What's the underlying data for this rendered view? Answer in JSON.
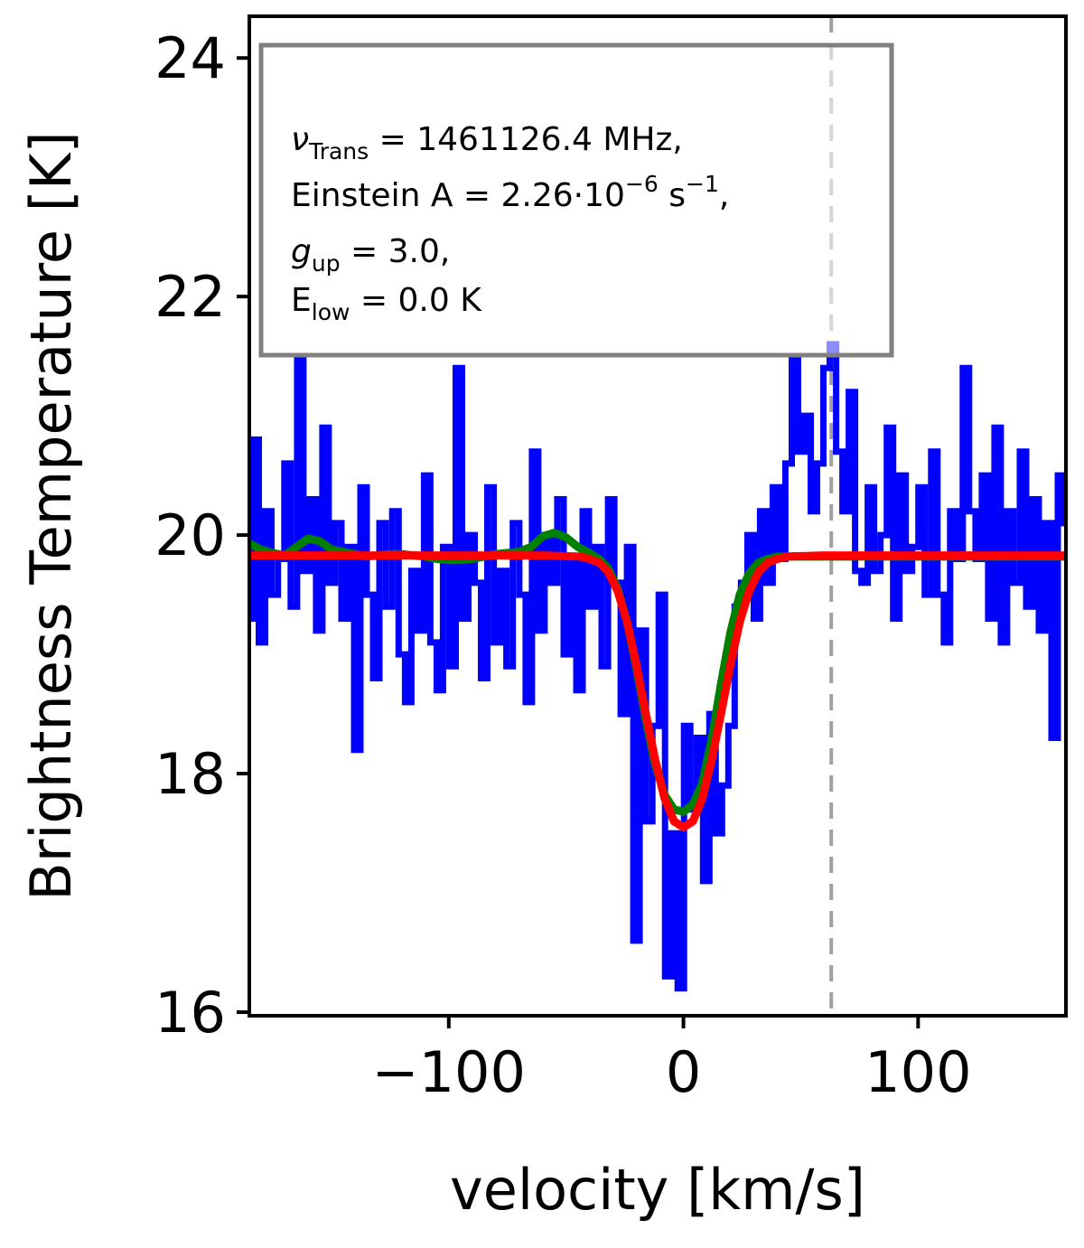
{
  "chart_data": {
    "type": "line",
    "xlabel": "velocity [km/s]",
    "ylabel": "Brightness Temperature [K]",
    "xlim": [
      -185,
      163
    ],
    "ylim": [
      15.97,
      24.35
    ],
    "xticks": [
      -100,
      0,
      100
    ],
    "xtick_labels": [
      "−100",
      "0",
      "100"
    ],
    "yticks": [
      16,
      18,
      20,
      22,
      24
    ],
    "ytick_labels": [
      "16",
      "18",
      "20",
      "22",
      "24"
    ],
    "grid": false,
    "legend": "none",
    "colors": {
      "observed": "#0000ff",
      "model": "#008000",
      "fit": "#ff0000",
      "marker_line": "#a0a0a0"
    },
    "vertical_marker_x": 63,
    "series": [
      {
        "line_style": "steps",
        "x": [
          -185.0,
          -182.3,
          -179.6,
          -176.9,
          -174.2,
          -171.4,
          -168.7,
          -166.0,
          -163.3,
          -160.6,
          -157.9,
          -155.2,
          -152.5,
          -149.8,
          -147.1,
          -144.4,
          -141.7,
          -139.0,
          -136.3,
          -133.6,
          -130.9,
          -128.2,
          -125.5,
          -122.7,
          -120.0,
          -117.3,
          -114.6,
          -111.9,
          -109.2,
          -106.5,
          -103.8,
          -101.1,
          -98.4,
          -95.7,
          -93.0,
          -90.3,
          -87.6,
          -84.9,
          -82.2,
          -79.5,
          -76.8,
          -74.1,
          -71.3,
          -68.6,
          -65.9,
          -63.2,
          -60.5,
          -57.8,
          -55.1,
          -52.4,
          -49.7,
          -47.0,
          -44.3,
          -41.6,
          -38.9,
          -36.2,
          -33.5,
          -30.8,
          -28.1,
          -25.4,
          -22.7,
          -20.0,
          -17.3,
          -14.6,
          -11.9,
          -9.2,
          -6.5,
          -3.8,
          -1.1,
          1.6,
          4.3,
          7.0,
          9.7,
          12.4,
          15.1,
          17.8,
          20.5,
          23.2,
          25.9,
          28.6,
          31.3,
          34.0,
          36.7,
          39.4,
          42.1,
          44.8,
          47.5,
          50.2,
          52.9,
          55.6,
          58.3,
          61.0,
          63.7,
          66.4,
          69.1,
          71.8,
          74.5,
          77.2,
          79.9,
          82.6,
          85.3,
          88.0,
          90.7,
          93.4,
          96.1,
          98.8,
          101.5,
          104.2,
          106.9,
          109.6,
          112.3,
          115.0,
          117.7,
          120.4,
          123.1,
          125.8,
          128.5,
          131.2,
          133.9,
          136.6,
          139.3,
          142.0,
          144.7,
          147.4,
          150.1,
          152.8,
          155.5,
          158.2,
          160.9,
          163.0
        ],
        "y": [
          19.3,
          20.8,
          19.1,
          20.2,
          19.5,
          19.8,
          20.6,
          19.4,
          21.5,
          19.7,
          20.3,
          19.2,
          20.9,
          19.6,
          20.1,
          19.3,
          19.9,
          18.2,
          20.4,
          19.5,
          18.8,
          20.1,
          19.4,
          20.2,
          19.0,
          18.6,
          19.7,
          19.2,
          20.5,
          19.1,
          18.7,
          19.9,
          18.9,
          21.4,
          19.3,
          20.0,
          19.6,
          18.8,
          20.4,
          19.1,
          19.7,
          18.9,
          20.1,
          19.5,
          18.6,
          20.7,
          19.2,
          20.0,
          19.6,
          20.3,
          19.0,
          19.8,
          18.7,
          20.2,
          19.4,
          19.9,
          18.9,
          20.3,
          19.6,
          18.5,
          19.9,
          16.6,
          19.2,
          17.6,
          18.4,
          19.5,
          16.3,
          17.5,
          16.2,
          18.4,
          17.7,
          18.3,
          17.1,
          18.5,
          17.5,
          17.9,
          18.4,
          19.4,
          19.6,
          20.0,
          19.3,
          20.2,
          19.6,
          20.4,
          19.8,
          20.6,
          21.5,
          20.7,
          21.0,
          20.2,
          20.6,
          21.4,
          21.6,
          20.7,
          20.2,
          21.2,
          19.7,
          19.6,
          20.4,
          19.7,
          20.0,
          20.9,
          19.3,
          20.5,
          19.7,
          19.9,
          20.4,
          19.5,
          20.7,
          19.5,
          19.1,
          20.2,
          19.8,
          21.4,
          20.2,
          19.8,
          20.5,
          19.3,
          20.9,
          19.1,
          20.2,
          19.6,
          20.7,
          19.4,
          20.3,
          19.2,
          20.1,
          18.3,
          20.5,
          20.1
        ]
      },
      {
        "line_style": "line",
        "x": [
          -185,
          -180,
          -175,
          -170,
          -165,
          -160,
          -155,
          -150,
          -145,
          -140,
          -135,
          -130,
          -125,
          -120,
          -115,
          -110,
          -105,
          -100,
          -95,
          -90,
          -85,
          -80,
          -75,
          -70,
          -65,
          -60,
          -55,
          -50,
          -45,
          -40,
          -36,
          -32,
          -28,
          -24,
          -20,
          -16,
          -12,
          -8,
          -4,
          0,
          4,
          8,
          12,
          16,
          20,
          24,
          28,
          32,
          36,
          40,
          50,
          60,
          70,
          80,
          90,
          100,
          110,
          120,
          130,
          140,
          150,
          163
        ],
        "y": [
          19.93,
          19.88,
          19.85,
          19.83,
          19.9,
          19.97,
          19.95,
          19.88,
          19.86,
          19.84,
          19.82,
          19.83,
          19.84,
          19.84,
          19.83,
          19.82,
          19.8,
          19.79,
          19.79,
          19.8,
          19.82,
          19.84,
          19.85,
          19.86,
          19.9,
          19.99,
          20.02,
          19.98,
          19.9,
          19.85,
          19.8,
          19.72,
          19.55,
          19.27,
          18.88,
          18.45,
          18.07,
          17.82,
          17.7,
          17.68,
          17.74,
          17.92,
          18.28,
          18.75,
          19.18,
          19.5,
          19.68,
          19.77,
          19.8,
          19.82,
          19.82,
          19.82,
          19.82,
          19.82,
          19.82,
          19.82,
          19.82,
          19.82,
          19.82,
          19.82,
          19.82,
          19.82
        ]
      },
      {
        "line_style": "line",
        "x": [
          -185,
          -150,
          -100,
          -60,
          -44,
          -40,
          -36,
          -32,
          -28,
          -24,
          -20,
          -16,
          -12,
          -8,
          -4,
          0,
          4,
          8,
          12,
          16,
          20,
          24,
          28,
          32,
          36,
          40,
          44,
          60,
          100,
          163
        ],
        "y": [
          19.83,
          19.83,
          19.83,
          19.83,
          19.82,
          19.8,
          19.77,
          19.69,
          19.53,
          19.27,
          18.91,
          18.5,
          18.11,
          17.79,
          17.6,
          17.55,
          17.6,
          17.79,
          18.11,
          18.5,
          18.91,
          19.27,
          19.53,
          19.69,
          19.77,
          19.8,
          19.82,
          19.83,
          19.83,
          19.83
        ]
      }
    ],
    "annotation": {
      "line1": {
        "symbol": "ν",
        "sub": "Trans",
        "rest": " = 1461126.4 MHz,"
      },
      "line2": {
        "text": "Einstein A = 2.26·10",
        "sup1": "−6",
        "mid": " s",
        "sup2": "−1",
        "end": ","
      },
      "line3": {
        "symbol": "g",
        "sub": "up",
        "rest": " = 3.0,"
      },
      "line4": {
        "symbol": "E",
        "sub": "low",
        "rest": " = 0.0 K"
      }
    }
  }
}
